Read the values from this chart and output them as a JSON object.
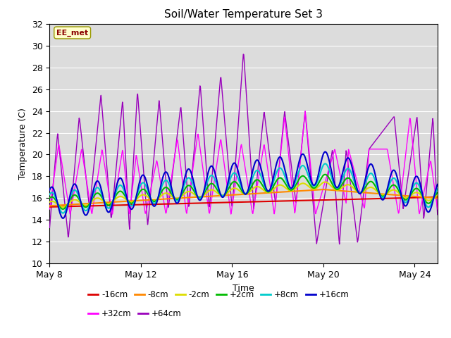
{
  "title": "Soil/Water Temperature Set 3",
  "xlabel": "Time",
  "ylabel": "Temperature (C)",
  "ylim": [
    10,
    32
  ],
  "yticks": [
    10,
    12,
    14,
    16,
    18,
    20,
    22,
    24,
    26,
    28,
    30,
    32
  ],
  "xtick_labels": [
    "May 8",
    "May 12",
    "May 16",
    "May 20",
    "May 24"
  ],
  "xtick_positions": [
    0,
    4,
    8,
    12,
    16
  ],
  "xlim": [
    0,
    17
  ],
  "annotation_text": "EE_met",
  "series": {
    "-16cm": {
      "color": "#dd0000",
      "lw": 1.5,
      "zorder": 4
    },
    "-8cm": {
      "color": "#ff8800",
      "lw": 1.5,
      "zorder": 4
    },
    "-2cm": {
      "color": "#dddd00",
      "lw": 1.5,
      "zorder": 4
    },
    "+2cm": {
      "color": "#00bb00",
      "lw": 1.5,
      "zorder": 4
    },
    "+8cm": {
      "color": "#00cccc",
      "lw": 1.5,
      "zorder": 4
    },
    "+16cm": {
      "color": "#0000cc",
      "lw": 1.5,
      "zorder": 4
    },
    "+32cm": {
      "color": "#ff00ff",
      "lw": 1.0,
      "zorder": 3
    },
    "+64cm": {
      "color": "#9900bb",
      "lw": 1.0,
      "zorder": 3
    }
  },
  "legend_order": [
    "-16cm",
    "-8cm",
    "-2cm",
    "+2cm",
    "+8cm",
    "+16cm",
    "+32cm",
    "+64cm"
  ]
}
